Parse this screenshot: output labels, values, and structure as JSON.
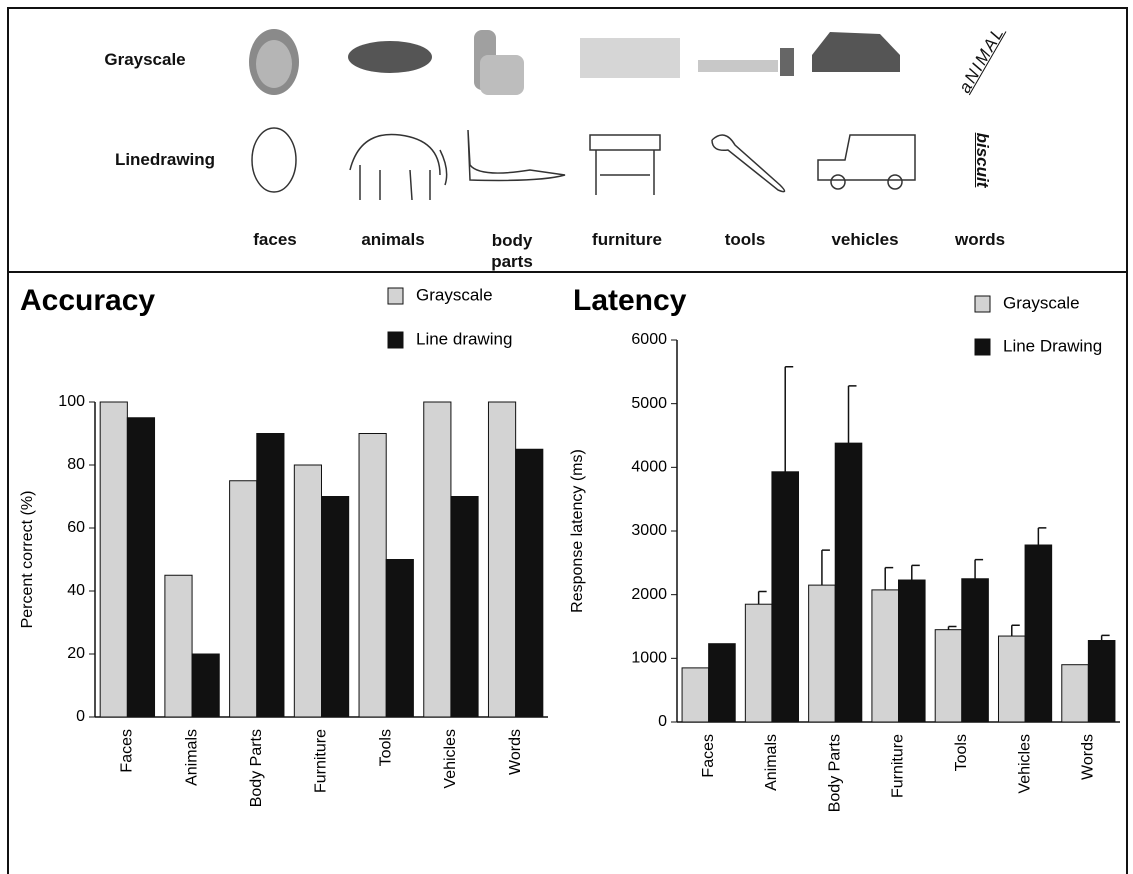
{
  "header": {
    "row_labels": [
      "Grayscale",
      "Linedrawing"
    ],
    "categories": [
      "faces",
      "animals",
      "body parts",
      "furniture",
      "tools",
      "vehicles",
      "words"
    ],
    "word_stimuli": [
      "aNIMAL",
      "biscuit"
    ]
  },
  "chart_data": [
    {
      "type": "bar",
      "title": "Accuracy",
      "ylabel": "Percent correct (%)",
      "categories": [
        "Faces",
        "Animals",
        "Body Parts",
        "Furniture",
        "Tools",
        "Vehicles",
        "Words"
      ],
      "series": [
        {
          "name": "Grayscale",
          "color": "#d3d3d3",
          "values": [
            100,
            45,
            75,
            80,
            90,
            100,
            100
          ]
        },
        {
          "name": "Line drawing",
          "color": "#111111",
          "values": [
            95,
            20,
            90,
            70,
            50,
            70,
            85
          ]
        }
      ],
      "ylim": [
        0,
        100
      ],
      "yticks": [
        0,
        20,
        40,
        60,
        80,
        100
      ],
      "legend": "top right"
    },
    {
      "type": "bar",
      "title": "Latency",
      "ylabel": "Response latency (ms)",
      "categories": [
        "Faces",
        "Animals",
        "Body Parts",
        "Furniture",
        "Tools",
        "Vehicles",
        "Words"
      ],
      "series": [
        {
          "name": "Grayscale",
          "color": "#d3d3d3",
          "values": [
            850,
            1850,
            2150,
            2075,
            1450,
            1350,
            900
          ],
          "errors": [
            null,
            200,
            550,
            350,
            50,
            170,
            null
          ]
        },
        {
          "name": "Line Drawing",
          "color": "#111111",
          "values": [
            1230,
            3930,
            4380,
            2230,
            2250,
            2780,
            1280
          ],
          "errors": [
            null,
            1650,
            900,
            230,
            300,
            270,
            80
          ]
        }
      ],
      "ylim": [
        0,
        6000
      ],
      "yticks": [
        0,
        1000,
        2000,
        3000,
        4000,
        5000,
        6000
      ],
      "legend": "top right"
    }
  ]
}
